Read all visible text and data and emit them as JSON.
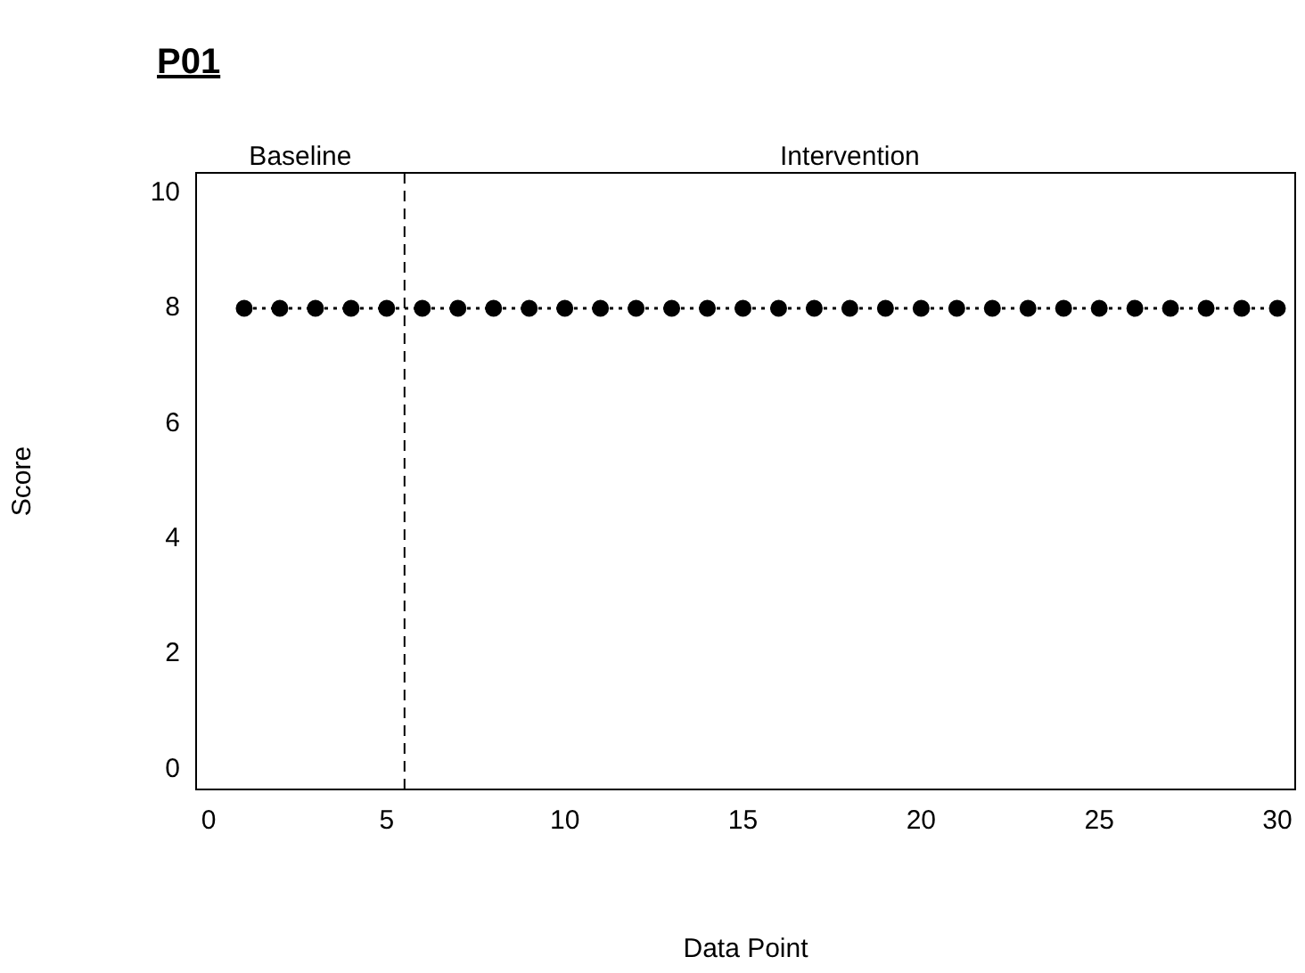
{
  "chart_data": {
    "type": "line",
    "title": "P01",
    "xlabel": "Data Point",
    "ylabel": "Score",
    "x": [
      1,
      2,
      3,
      4,
      5,
      6,
      7,
      8,
      9,
      10,
      11,
      12,
      13,
      14,
      15,
      16,
      17,
      18,
      19,
      20,
      21,
      22,
      23,
      24,
      25,
      26,
      27,
      28,
      29,
      30
    ],
    "series": [
      {
        "color": "#000000",
        "values": [
          8,
          8,
          8,
          8,
          8,
          8,
          8,
          8,
          8,
          8,
          8,
          8,
          8,
          8,
          8,
          8,
          8,
          8,
          8,
          8,
          8,
          8,
          8,
          8,
          8,
          8,
          8,
          8,
          8,
          8
        ]
      }
    ],
    "xlim": [
      -0.35,
      30.5
    ],
    "xticks": [
      0,
      5,
      10,
      15,
      20,
      25,
      30
    ],
    "ylim": [
      -0.35,
      10.35
    ],
    "yticks": [
      0,
      2,
      4,
      6,
      8,
      10
    ],
    "ref_lines": [
      {
        "axis": "x",
        "value": 5.5,
        "line_style": "dashed",
        "color": "#000000"
      }
    ],
    "annotations": [
      "Baseline",
      "Intervention"
    ],
    "grid": false,
    "legend": false,
    "marker": "circle",
    "line_style": "dotted"
  }
}
